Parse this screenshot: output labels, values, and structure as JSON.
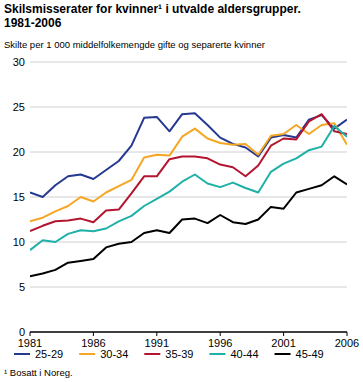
{
  "chart_data": {
    "type": "line",
    "title": "Skilsmisserater for kvinner¹ i utvalde aldersgrupper. 1981-2006",
    "subtitle": "Skilte per 1 000 middelfolkemengde gifte og separerte kvinner",
    "footnote": "¹ Bosatt i Noreg.",
    "x": [
      1981,
      1982,
      1983,
      1984,
      1985,
      1986,
      1987,
      1988,
      1989,
      1990,
      1991,
      1992,
      1993,
      1994,
      1995,
      1996,
      1997,
      1998,
      1999,
      2000,
      2001,
      2002,
      2003,
      2004,
      2005,
      2006
    ],
    "xlim": [
      1981,
      2006
    ],
    "xticks": [
      1981,
      1986,
      1991,
      1996,
      2001,
      2006
    ],
    "ylim": [
      0,
      30
    ],
    "yticks": [
      0,
      5,
      10,
      15,
      20,
      25,
      30
    ],
    "grid": true,
    "legend": "bottom",
    "series": [
      {
        "name": "25-29",
        "color": "#24398f",
        "values": [
          15.5,
          15.0,
          16.3,
          17.3,
          17.5,
          17.0,
          18.0,
          19.0,
          20.7,
          23.8,
          23.9,
          22.3,
          24.2,
          24.3,
          23.0,
          21.6,
          20.9,
          20.5,
          19.5,
          21.6,
          21.9,
          21.6,
          23.6,
          24.1,
          22.6,
          23.6
        ]
      },
      {
        "name": "30-34",
        "color": "#f5a623",
        "values": [
          12.3,
          12.7,
          13.4,
          14.0,
          15.0,
          14.5,
          15.5,
          16.2,
          16.9,
          19.4,
          19.7,
          19.6,
          21.7,
          22.6,
          21.5,
          21.0,
          20.8,
          20.9,
          19.7,
          21.8,
          22.0,
          23.0,
          22.0,
          23.0,
          23.2,
          20.8
        ]
      },
      {
        "name": "35-39",
        "color": "#b31530",
        "values": [
          11.2,
          11.8,
          12.3,
          12.4,
          12.6,
          12.2,
          13.5,
          13.6,
          15.4,
          17.3,
          17.3,
          19.2,
          19.5,
          19.5,
          19.3,
          18.6,
          18.3,
          17.3,
          18.5,
          20.7,
          21.5,
          21.4,
          23.4,
          24.2,
          22.3,
          22.0
        ]
      },
      {
        "name": "40-44",
        "color": "#1fb0a8",
        "values": [
          9.1,
          10.2,
          10.0,
          10.9,
          11.3,
          11.2,
          11.5,
          12.3,
          12.9,
          14.0,
          14.8,
          15.6,
          16.7,
          17.5,
          16.5,
          16.1,
          16.6,
          16.0,
          15.5,
          17.8,
          18.7,
          19.3,
          20.2,
          20.6,
          22.9,
          21.7
        ]
      },
      {
        "name": "45-49",
        "color": "#000000",
        "values": [
          6.2,
          6.5,
          6.9,
          7.7,
          7.9,
          8.1,
          9.4,
          9.8,
          10.0,
          11.0,
          11.3,
          11.0,
          12.5,
          12.6,
          12.1,
          13.0,
          12.2,
          12.0,
          12.5,
          13.9,
          13.7,
          15.5,
          15.9,
          16.3,
          17.3,
          16.4
        ]
      }
    ]
  }
}
